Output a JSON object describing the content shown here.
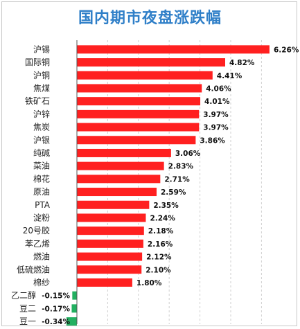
{
  "chart_data": {
    "type": "bar",
    "orientation": "horizontal",
    "title": "国内期市夜盘涨跌幅",
    "categories": [
      "沪锡",
      "国际铜",
      "沪铜",
      "焦煤",
      "铁矿石",
      "沪锌",
      "焦炭",
      "沪银",
      "纯碱",
      "菜油",
      "棉花",
      "原油",
      "PTA",
      "淀粉",
      "20号胶",
      "苯乙烯",
      "燃油",
      "低硫燃油",
      "棉纱",
      "乙二醇",
      "豆二",
      "豆一"
    ],
    "values": [
      6.26,
      4.82,
      4.41,
      4.06,
      4.01,
      3.97,
      3.97,
      3.86,
      3.06,
      2.83,
      2.71,
      2.59,
      2.35,
      2.24,
      2.18,
      2.16,
      2.12,
      2.1,
      1.8,
      -0.15,
      -0.17,
      -0.34
    ],
    "value_labels": [
      "6.26%",
      "4.82%",
      "4.41%",
      "4.06%",
      "4.01%",
      "3.97%",
      "3.97%",
      "3.86%",
      "3.06%",
      "2.83%",
      "2.71%",
      "2.59%",
      "2.35%",
      "2.24%",
      "2.18%",
      "2.16%",
      "2.12%",
      "2.10%",
      "1.80%",
      "-0.15%",
      "-0.17%",
      "-0.34%"
    ],
    "positive_color": "#ff2020",
    "negative_color": "#22b060",
    "xlim": [
      -0.34,
      6.8
    ],
    "grid": true
  }
}
